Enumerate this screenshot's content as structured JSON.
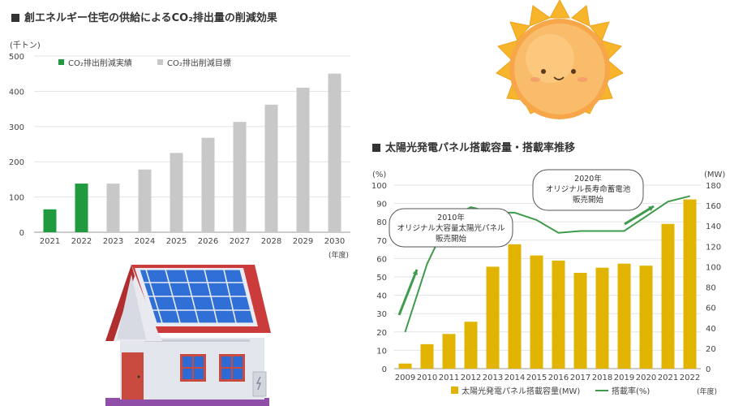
{
  "chart1": {
    "title": "創エネルギー住宅の供給によるCO₂排出量の削減効果",
    "chart_data": {
      "type": "bar",
      "title": "創エネルギー住宅の供給によるCO₂排出量の削減効果",
      "ylabel": "(千トン)",
      "xlabel": "(年度)",
      "ylim": [
        0,
        500
      ],
      "yticks": [
        0,
        100,
        200,
        300,
        400,
        500
      ],
      "grid": true,
      "legend": "top-left",
      "categories": [
        "2021",
        "2022",
        "2023",
        "2024",
        "2025",
        "2026",
        "2027",
        "2028",
        "2029",
        "2030"
      ],
      "series": [
        {
          "name": "CO₂排出削減実績",
          "color": "#1f9a3e",
          "values": [
            65,
            138,
            null,
            null,
            null,
            null,
            null,
            null,
            null,
            null
          ]
        },
        {
          "name": "CO₂排出削減目標",
          "color": "#c8c8c8",
          "values": [
            null,
            null,
            138,
            178,
            225,
            268,
            313,
            362,
            410,
            450
          ]
        }
      ]
    }
  },
  "chart2": {
    "title": "太陽光発電パネル搭載容量・搭載率推移",
    "chart_data": {
      "type": "bar",
      "title": "太陽光発電パネル搭載容量・搭載率推移",
      "ylabel_left": "(%)",
      "ylabel_right": "(MW)",
      "xlabel": "(年度)",
      "ylim_left": [
        0,
        100
      ],
      "ylim_right": [
        0,
        180
      ],
      "yticks_left": [
        0,
        10,
        20,
        30,
        40,
        50,
        60,
        70,
        80,
        90,
        100
      ],
      "yticks_right": [
        0,
        20,
        40,
        60,
        80,
        100,
        120,
        140,
        160,
        180
      ],
      "grid": true,
      "legend": "bottom",
      "categories": [
        "2009",
        "2010",
        "2011",
        "2012",
        "2013",
        "2014",
        "2015",
        "2016",
        "2017",
        "2018",
        "2019",
        "2020",
        "2021",
        "2022"
      ],
      "series": [
        {
          "name": "太陽光発電パネル搭載容量(MW)",
          "type": "bar",
          "axis": "right",
          "color": "#e0b400",
          "values": [
            5,
            24,
            34,
            46,
            100,
            122,
            111,
            106,
            94,
            99,
            103,
            101,
            142,
            166
          ]
        },
        {
          "name": "搭載率(%)",
          "type": "line",
          "axis": "left",
          "color": "#3e9b4c",
          "values": [
            20,
            57,
            82,
            88,
            85,
            85,
            81,
            74,
            75,
            75,
            75,
            83,
            91,
            94
          ]
        }
      ],
      "annotations": [
        {
          "lines": [
            "2010年",
            "オリジナル大容量太陽光パネル",
            "販売開始"
          ]
        },
        {
          "lines": [
            "2020年",
            "オリジナル長寿命蓄電池",
            "販売開始"
          ]
        }
      ]
    }
  },
  "colors": {
    "accent_green": "#1f9a3e",
    "target_gray": "#c8c8c8",
    "bar_gold": "#e0b400",
    "line_green": "#3e9b4c"
  },
  "illustrations": [
    "sun-illustration",
    "house-with-solar-panels-illustration"
  ]
}
